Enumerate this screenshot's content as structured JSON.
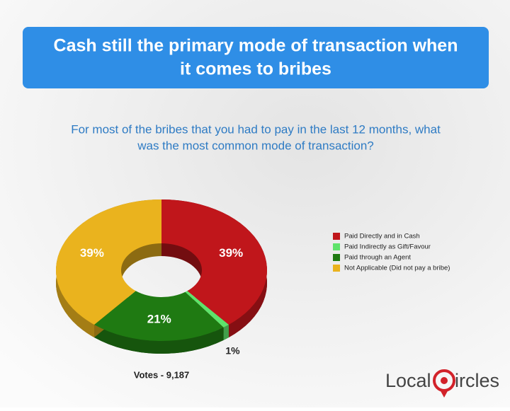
{
  "chart_data": {
    "type": "pie",
    "style": "donut-3d",
    "title": [
      "Cash still the primary mode of transaction when",
      "it comes to bribes"
    ],
    "subtitle": [
      "For most of the bribes that you had to pay in the last 12 months, what",
      "was the most common mode of transaction?"
    ],
    "categories": [
      "Paid Directly and in Cash",
      "Paid Indirectly as Gift/Favour",
      "Paid through an Agent",
      "Not Applicable (Did not pay a bribe)"
    ],
    "values": [
      39,
      1,
      21,
      39
    ],
    "value_labels": [
      "39%",
      "1%",
      "21%",
      "39%"
    ],
    "colors": [
      "#c0161b",
      "#5ee36b",
      "#1f7a12",
      "#eab31e"
    ],
    "annotation": "Votes - 9,187",
    "logo": [
      "Local",
      "ircles"
    ],
    "legend": "right"
  }
}
